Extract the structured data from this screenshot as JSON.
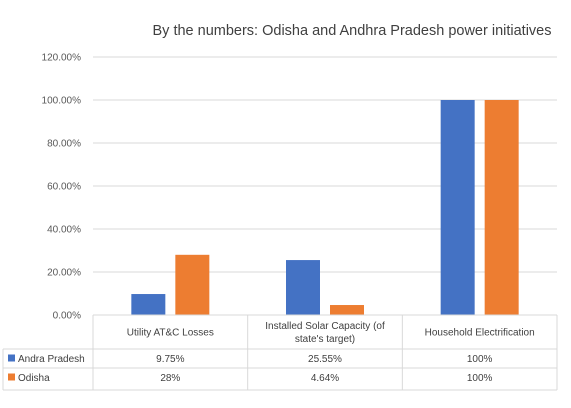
{
  "chart_data": {
    "type": "bar",
    "title": "By the numbers: Odisha and Andhra Pradesh power initiatives",
    "xlabel": "",
    "ylabel": "",
    "ylim": [
      0,
      120
    ],
    "y_ticks": [
      "0.00%",
      "20.00%",
      "40.00%",
      "60.00%",
      "80.00%",
      "100.00%",
      "120.00%"
    ],
    "grid": true,
    "legend": "data-table",
    "categories": [
      [
        "Utility AT&C Losses"
      ],
      [
        "Installed Solar Capacity (of",
        "state's target)"
      ],
      [
        "Household Electrification"
      ]
    ],
    "series": [
      {
        "name": "Andra Pradesh",
        "color": "#4472C4",
        "values": [
          9.75,
          25.55,
          100
        ],
        "labels": [
          "9.75%",
          "25.55%",
          "100%"
        ]
      },
      {
        "name": "Odisha",
        "color": "#ED7D31",
        "values": [
          28,
          4.64,
          100
        ],
        "labels": [
          "28%",
          "4.64%",
          "100%"
        ]
      }
    ]
  }
}
